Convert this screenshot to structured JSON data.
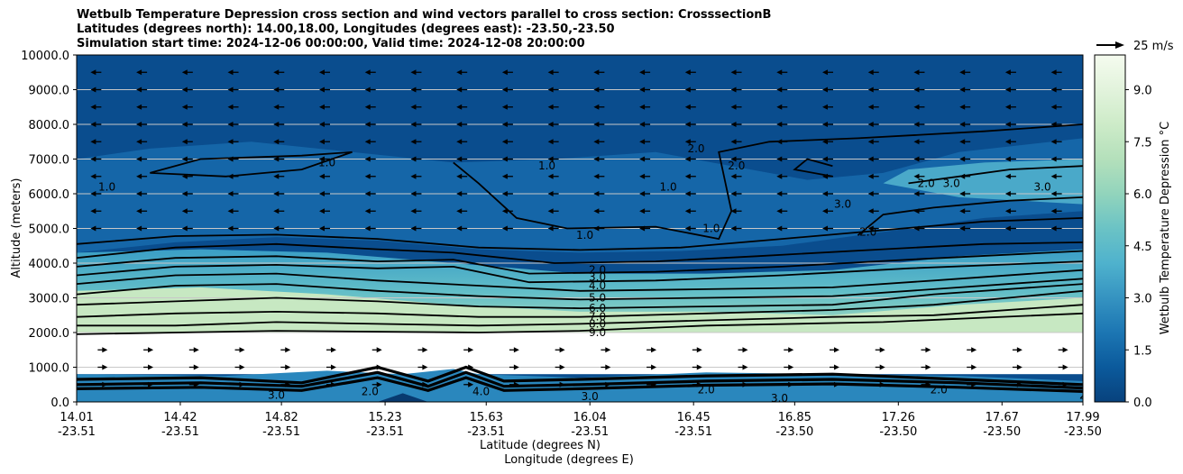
{
  "chart_data": {
    "type": "heatmap",
    "title_lines": [
      "Wetbulb Temperature Depression cross section and wind vectors parallel to cross section: CrosssectionB",
      "Latitudes (degrees north): 14.00,18.00, Longitudes (degrees east): -23.50,-23.50",
      "Simulation start time: 2024-12-06 00:00:00, Valid time: 2024-12-08 20:00:00"
    ],
    "xlabel_lines": [
      "Latitude (degrees N)",
      "Longitude (degrees E)"
    ],
    "ylabel": "Altitude (meters)",
    "x_ticks": [
      {
        "lat": "14.01",
        "lon": "-23.51"
      },
      {
        "lat": "14.42",
        "lon": "-23.51"
      },
      {
        "lat": "14.82",
        "lon": "-23.51"
      },
      {
        "lat": "15.23",
        "lon": "-23.51"
      },
      {
        "lat": "15.63",
        "lon": "-23.51"
      },
      {
        "lat": "16.04",
        "lon": "-23.51"
      },
      {
        "lat": "16.45",
        "lon": "-23.51"
      },
      {
        "lat": "16.85",
        "lon": "-23.50"
      },
      {
        "lat": "17.26",
        "lon": "-23.50"
      },
      {
        "lat": "17.67",
        "lon": "-23.50"
      },
      {
        "lat": "17.99",
        "lon": "-23.50"
      }
    ],
    "x_range": [
      14.01,
      17.99
    ],
    "y_ticks": [
      "0.0",
      "1000.0",
      "2000.0",
      "3000.0",
      "4000.0",
      "5000.0",
      "6000.0",
      "7000.0",
      "8000.0",
      "9000.0",
      "10000.0"
    ],
    "y_range": [
      0,
      10000
    ],
    "grid": "horizontal",
    "colorbar": {
      "label": "Wetbulb Temperature Depression °C",
      "ticks": [
        "0.0",
        "1.5",
        "3.0",
        "4.5",
        "6.0",
        "7.5",
        "9.0"
      ],
      "range": [
        0,
        10
      ]
    },
    "wind_reference": {
      "label": "25 m/s",
      "speed": 25
    },
    "contour_levels": [
      1.0,
      2.0,
      3.0,
      4.0,
      5.0,
      6.0,
      7.0,
      8.0,
      9.0
    ],
    "contour_labels": [
      {
        "text": "1.0",
        "lat": 14.13,
        "alt": 6200
      },
      {
        "text": "1.0",
        "lat": 15.0,
        "alt": 6900
      },
      {
        "text": "1.0",
        "lat": 15.87,
        "alt": 6800
      },
      {
        "text": "2.0",
        "lat": 16.46,
        "alt": 7300
      },
      {
        "text": "1.0",
        "lat": 16.35,
        "alt": 6200
      },
      {
        "text": "2.0",
        "lat": 16.62,
        "alt": 6800
      },
      {
        "text": "1.0",
        "lat": 16.52,
        "alt": 5000
      },
      {
        "text": "1.0",
        "lat": 16.02,
        "alt": 4800
      },
      {
        "text": "3.0",
        "lat": 17.04,
        "alt": 5700
      },
      {
        "text": "2.0",
        "lat": 17.14,
        "alt": 4900
      },
      {
        "text": "2.0",
        "lat": 17.37,
        "alt": 6300
      },
      {
        "text": "3.0",
        "lat": 17.47,
        "alt": 6300
      },
      {
        "text": "3.0",
        "lat": 17.83,
        "alt": 6200
      },
      {
        "text": "2.0",
        "lat": 16.07,
        "alt": 3800
      },
      {
        "text": "3.0",
        "lat": 16.07,
        "alt": 3600
      },
      {
        "text": "4.0",
        "lat": 16.07,
        "alt": 3350
      },
      {
        "text": "5.0",
        "lat": 16.07,
        "alt": 3000
      },
      {
        "text": "6.0",
        "lat": 16.07,
        "alt": 2700
      },
      {
        "text": "7.0",
        "lat": 16.07,
        "alt": 2450
      },
      {
        "text": "8.0",
        "lat": 16.07,
        "alt": 2250
      },
      {
        "text": "9.0",
        "lat": 16.07,
        "alt": 2000
      },
      {
        "text": "2.0",
        "lat": 15.17,
        "alt": 300
      },
      {
        "text": "4.0",
        "lat": 15.61,
        "alt": 300
      },
      {
        "text": "3.0",
        "lat": 16.04,
        "alt": 150
      },
      {
        "text": "3.0",
        "lat": 16.79,
        "alt": 100
      },
      {
        "text": "2.0",
        "lat": 16.5,
        "alt": 350
      },
      {
        "text": "2.0",
        "lat": 17.42,
        "alt": 350
      },
      {
        "text": "2.0",
        "lat": 18.01,
        "alt": 200
      },
      {
        "text": "3.0",
        "lat": 14.8,
        "alt": 200
      }
    ],
    "wind_regime": [
      {
        "alt_from": 0,
        "alt_to": 2000,
        "direction": "toward higher latitude",
        "speed_ms": 8
      },
      {
        "alt_from": 2000,
        "alt_to": 4500,
        "direction": "weak",
        "speed_ms": 2
      },
      {
        "alt_from": 4500,
        "alt_to": 10000,
        "direction": "toward lower latitude",
        "speed_ms": 10
      }
    ]
  }
}
